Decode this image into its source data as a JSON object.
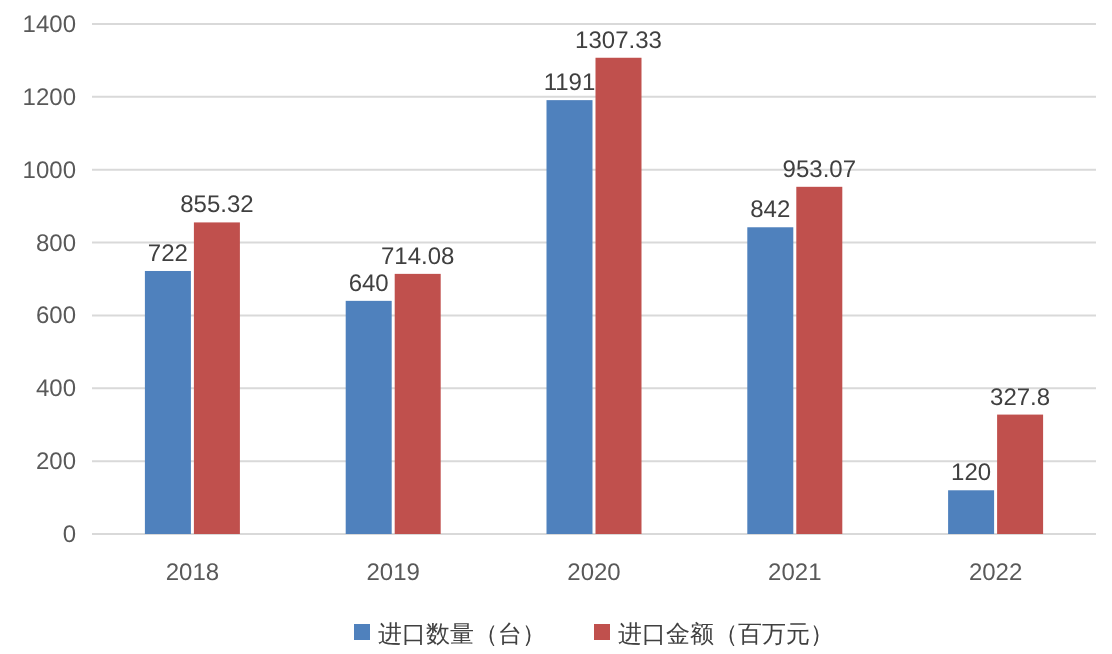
{
  "chart_data": {
    "type": "bar",
    "categories": [
      "2018",
      "2019",
      "2020",
      "2021",
      "2022"
    ],
    "series": [
      {
        "name": "进口数量（台）",
        "color": "#4f81bd",
        "values": [
          722,
          640,
          1191,
          842,
          120
        ]
      },
      {
        "name": "进口金额（百万元）",
        "color": "#c0504d",
        "values": [
          855.32,
          714.08,
          1307.33,
          953.07,
          327.8
        ]
      }
    ],
    "ylim": [
      0,
      1400
    ],
    "yticks": [
      0,
      200,
      400,
      600,
      800,
      1000,
      1200,
      1400
    ],
    "grid": "y",
    "legend": "bottom",
    "data_labels": true
  }
}
